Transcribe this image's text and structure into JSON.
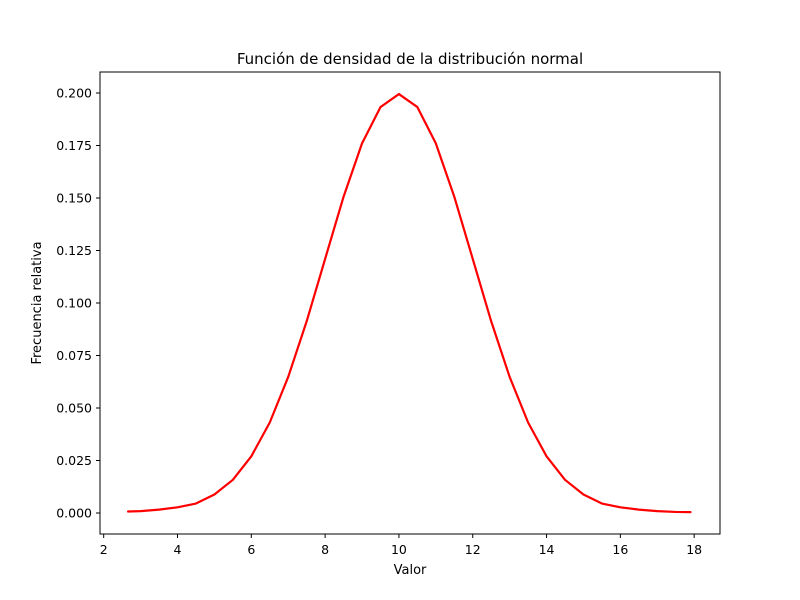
{
  "chart_data": {
    "type": "line",
    "title": "Función de densidad de la distribución normal",
    "xlabel": "Valor",
    "ylabel": "Frecuencia relativa",
    "xlim": [
      1.9,
      18.7
    ],
    "ylim": [
      -0.01,
      0.21
    ],
    "x_ticks": [
      2,
      4,
      6,
      8,
      10,
      12,
      14,
      16,
      18
    ],
    "x_tick_labels": [
      "2",
      "4",
      "6",
      "8",
      "10",
      "12",
      "14",
      "16",
      "18"
    ],
    "y_ticks": [
      0.0,
      0.025,
      0.05,
      0.075,
      0.1,
      0.125,
      0.15,
      0.175,
      0.2
    ],
    "y_tick_labels": [
      "0.000",
      "0.025",
      "0.050",
      "0.075",
      "0.100",
      "0.125",
      "0.150",
      "0.175",
      "0.200"
    ],
    "grid": false,
    "series": [
      {
        "color": "#ff0000",
        "x": [
          2.66,
          3.0,
          3.5,
          4.0,
          4.5,
          5.0,
          5.5,
          6.0,
          6.5,
          7.0,
          7.5,
          8.0,
          8.5,
          9.0,
          9.5,
          10.0,
          10.5,
          11.0,
          11.5,
          12.0,
          12.5,
          13.0,
          13.5,
          14.0,
          14.5,
          15.0,
          15.5,
          16.0,
          16.5,
          17.0,
          17.5,
          17.9
        ],
        "y": [
          0.0007,
          0.0009,
          0.0016,
          0.0027,
          0.0045,
          0.0088,
          0.0158,
          0.027,
          0.0431,
          0.0648,
          0.0913,
          0.121,
          0.1506,
          0.176,
          0.1933,
          0.1995,
          0.1933,
          0.176,
          0.1506,
          0.121,
          0.0913,
          0.0648,
          0.0431,
          0.027,
          0.0158,
          0.0088,
          0.0045,
          0.0027,
          0.0016,
          0.0009,
          0.0005,
          0.0004
        ]
      }
    ]
  }
}
